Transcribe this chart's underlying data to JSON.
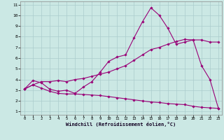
{
  "xlabel": "Windchill (Refroidissement éolien,°C)",
  "bg_color": "#cbe8e4",
  "grid_color": "#aacccc",
  "line_color": "#990077",
  "xlim": [
    -0.5,
    23.4
  ],
  "ylim": [
    0.7,
    11.3
  ],
  "xticks": [
    0,
    1,
    2,
    3,
    4,
    5,
    6,
    7,
    8,
    9,
    10,
    11,
    12,
    13,
    14,
    15,
    16,
    17,
    18,
    19,
    20,
    21,
    22,
    23
  ],
  "yticks": [
    1,
    2,
    3,
    4,
    5,
    6,
    7,
    8,
    9,
    10,
    11
  ],
  "line1_x": [
    0,
    1,
    2,
    3,
    4,
    5,
    6,
    7,
    8,
    9,
    10,
    11,
    12,
    13,
    14,
    15,
    16,
    17,
    18,
    19,
    20,
    21,
    22,
    23
  ],
  "line1_y": [
    3.1,
    3.9,
    3.7,
    3.1,
    2.9,
    3.0,
    2.7,
    3.3,
    3.8,
    4.7,
    5.7,
    6.1,
    6.3,
    7.9,
    9.4,
    10.7,
    10.0,
    8.8,
    7.3,
    7.5,
    7.7,
    5.3,
    4.0,
    1.3
  ],
  "line2_x": [
    0,
    1,
    2,
    3,
    4,
    5,
    6,
    7,
    8,
    9,
    10,
    11,
    12,
    13,
    14,
    15,
    16,
    17,
    18,
    19,
    20,
    21,
    22,
    23
  ],
  "line2_y": [
    3.1,
    3.5,
    3.8,
    3.8,
    3.9,
    3.8,
    4.0,
    4.1,
    4.3,
    4.5,
    4.7,
    5.0,
    5.3,
    5.8,
    6.3,
    6.8,
    7.0,
    7.3,
    7.55,
    7.75,
    7.7,
    7.7,
    7.5,
    7.5
  ],
  "line3_x": [
    0,
    1,
    2,
    3,
    4,
    5,
    6,
    7,
    8,
    9,
    10,
    11,
    12,
    13,
    14,
    15,
    16,
    17,
    18,
    19,
    20,
    21,
    22,
    23
  ],
  "line3_y": [
    3.1,
    3.5,
    3.2,
    2.9,
    2.7,
    2.65,
    2.65,
    2.6,
    2.55,
    2.5,
    2.4,
    2.3,
    2.2,
    2.1,
    2.0,
    1.9,
    1.85,
    1.75,
    1.7,
    1.65,
    1.5,
    1.4,
    1.35,
    1.3
  ]
}
